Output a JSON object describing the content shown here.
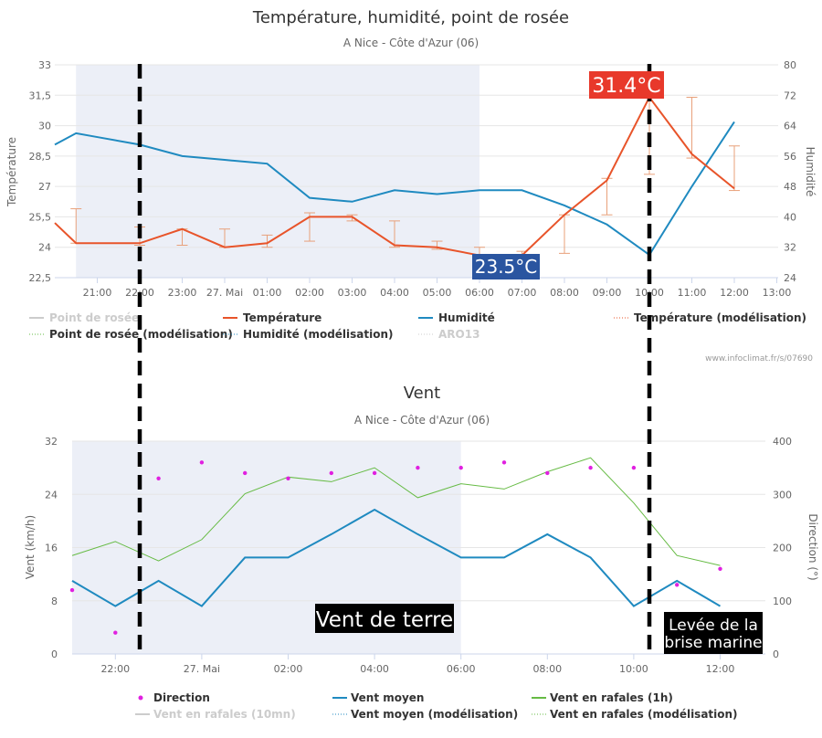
{
  "chart_data": [
    {
      "type": "line",
      "title": "Température, humidité, point de rosée",
      "subtitle": "A Nice - Côte d'Azur (06)",
      "ylabel": "Température",
      "y2label": "Humidité",
      "x_tick_labels": [
        "21:00",
        "22:00",
        "23:00",
        "27. Mai",
        "01:00",
        "02:00",
        "03:00",
        "04:00",
        "05:00",
        "06:00",
        "07:00",
        "08:00",
        "09:00",
        "10:00",
        "11:00",
        "12:00",
        "13:00"
      ],
      "y_tick_labels": [
        "22,5",
        "24",
        "25,5",
        "27",
        "28,5",
        "30",
        "31,5",
        "33"
      ],
      "y2_tick_labels": [
        "24",
        "32",
        "40",
        "48",
        "56",
        "64",
        "72",
        "80"
      ],
      "ylim": [
        22.5,
        33
      ],
      "y2lim": [
        24,
        80
      ],
      "grid": true,
      "night_band_hours": [
        20.5,
        30.0
      ],
      "series": [
        {
          "name": "Température",
          "color": "#e8542a",
          "x": [
            20.0,
            20.5,
            21.0,
            22.0,
            23.0,
            24.0,
            25.0,
            26.0,
            27.0,
            28.0,
            29.0,
            30.0,
            31.0,
            32.0,
            33.0,
            34.0,
            35.0,
            36.0
          ],
          "values": [
            25.2,
            24.2,
            24.2,
            24.2,
            24.9,
            24.0,
            24.2,
            25.5,
            25.5,
            24.1,
            24.0,
            23.6,
            23.6,
            25.6,
            27.3,
            31.4,
            28.6,
            26.9
          ]
        },
        {
          "name": "Humidité",
          "color": "#1f8ac0",
          "axis": "right",
          "x": [
            20.0,
            20.5,
            21.0,
            22.0,
            23.0,
            24.0,
            25.0,
            26.0,
            27.0,
            28.0,
            29.0,
            30.0,
            31.0,
            32.0,
            33.0,
            34.0,
            35.0,
            36.0
          ],
          "values": [
            59,
            62,
            61,
            59,
            56,
            55,
            54,
            45,
            44,
            47,
            46,
            47,
            47,
            43,
            38,
            30,
            48,
            65
          ]
        },
        {
          "name": "Température (modélisation)",
          "color": "#e8a07a",
          "errorbars": [
            {
              "x": 20.5,
              "low": 24.2,
              "high": 25.9
            },
            {
              "x": 22.0,
              "low": 24.1,
              "high": 25.0
            },
            {
              "x": 23.0,
              "low": 24.1,
              "high": 24.9
            },
            {
              "x": 24.0,
              "low": 24.0,
              "high": 24.9
            },
            {
              "x": 25.0,
              "low": 24.0,
              "high": 24.6
            },
            {
              "x": 26.0,
              "low": 24.3,
              "high": 25.7
            },
            {
              "x": 27.0,
              "low": 25.3,
              "high": 25.6
            },
            {
              "x": 28.0,
              "low": 24.0,
              "high": 25.3
            },
            {
              "x": 29.0,
              "low": 23.9,
              "high": 24.3
            },
            {
              "x": 30.0,
              "low": 23.6,
              "high": 24.0
            },
            {
              "x": 31.0,
              "low": 23.6,
              "high": 23.8
            },
            {
              "x": 32.0,
              "low": 23.7,
              "high": 25.6
            },
            {
              "x": 33.0,
              "low": 25.6,
              "high": 27.4
            },
            {
              "x": 34.0,
              "low": 27.6,
              "high": 31.6
            },
            {
              "x": 35.0,
              "low": 28.4,
              "high": 31.4
            },
            {
              "x": 36.0,
              "low": 26.8,
              "high": 29.0
            }
          ]
        }
      ],
      "legend": {
        "placement": "bottom",
        "items": [
          {
            "label": "Point de rosée",
            "color": "#cccccc",
            "style": "line-dim"
          },
          {
            "label": "Température",
            "color": "#e8542a",
            "style": "line"
          },
          {
            "label": "Humidité",
            "color": "#1f8ac0",
            "style": "line"
          },
          {
            "label": "Température (modélisation)",
            "color": "#e8542a",
            "style": "dotted"
          },
          {
            "label": "Point de rosée (modélisation)",
            "color": "#66bb44",
            "style": "dotted"
          },
          {
            "label": "Humidité (modélisation)",
            "color": "#1f8ac0",
            "style": "dotted"
          },
          {
            "label": "ARO13",
            "color": "#cccccc",
            "style": "dotted-dim"
          }
        ]
      },
      "annotations": [
        {
          "text": "31.4°C",
          "x": 34.0,
          "bg": "#e8392b"
        },
        {
          "text": "23.5°C",
          "x": 31.0,
          "bg": "#2a55a0"
        }
      ],
      "credit": "www.infoclimat.fr/s/07690"
    },
    {
      "type": "line",
      "title": "Vent",
      "subtitle": "A Nice - Côte d'Azur (06)",
      "ylabel": "Vent (km/h)",
      "y2label": "Direction (°)",
      "x_tick_labels": [
        "22:00",
        "27. Mai",
        "02:00",
        "04:00",
        "06:00",
        "08:00",
        "10:00",
        "12:00"
      ],
      "y_tick_labels": [
        "0",
        "8",
        "16",
        "24",
        "32"
      ],
      "y2_tick_labels": [
        "0",
        "100",
        "200",
        "300",
        "400"
      ],
      "ylim": [
        0,
        32
      ],
      "y2lim": [
        0,
        400
      ],
      "grid": true,
      "night_band_hours": [
        21.0,
        30.0
      ],
      "series": [
        {
          "name": "Vent moyen",
          "color": "#1f8ac0",
          "x": [
            21,
            22,
            23,
            24,
            25,
            26,
            27,
            28,
            29,
            30,
            31,
            32,
            33,
            34,
            35,
            36
          ],
          "values": [
            11,
            7.2,
            11,
            7.2,
            14.5,
            14.5,
            18,
            21.7,
            18,
            14.5,
            14.5,
            18,
            14.5,
            7.2,
            11,
            7.2
          ]
        },
        {
          "name": "Vent en rafales (1h)",
          "color": "#66bb44",
          "x": [
            21,
            22,
            23,
            24,
            25,
            26,
            27,
            28,
            29,
            30,
            31,
            32,
            33,
            34,
            35,
            36
          ],
          "values": [
            14.8,
            16.9,
            14,
            17.2,
            24.1,
            26.6,
            25.9,
            28,
            23.5,
            25.6,
            24.8,
            27.4,
            29.5,
            22.7,
            14.8,
            13.3
          ]
        },
        {
          "name": "Direction",
          "color": "#e020e0",
          "axis": "right",
          "style": "points",
          "x": [
            21,
            22,
            23,
            24,
            25,
            26,
            27,
            28,
            29,
            30,
            31,
            32,
            33,
            34,
            35,
            36
          ],
          "values": [
            120,
            40,
            330,
            360,
            340,
            330,
            340,
            340,
            350,
            350,
            360,
            340,
            350,
            350,
            130,
            160
          ]
        }
      ],
      "legend": {
        "placement": "bottom",
        "items": [
          {
            "label": "Direction",
            "color": "#e020e0",
            "style": "dot"
          },
          {
            "label": "Vent moyen",
            "color": "#1f8ac0",
            "style": "line"
          },
          {
            "label": "Vent en rafales (1h)",
            "color": "#66bb44",
            "style": "line"
          },
          {
            "label": "Vent en rafales (10mn)",
            "color": "#cccccc",
            "style": "line-dim"
          },
          {
            "label": "Vent moyen (modélisation)",
            "color": "#1f8ac0",
            "style": "dotted"
          },
          {
            "label": "Vent en rafales (modélisation)",
            "color": "#66bb44",
            "style": "dotted"
          }
        ]
      },
      "annotations": [
        {
          "text": "Vent de terre"
        },
        {
          "text": "Levée de la\nbrise marine"
        }
      ]
    }
  ],
  "overlay_lines": [
    {
      "name": "dashed-line-22h",
      "hour": 22.0
    },
    {
      "name": "dashed-line-10h",
      "hour": 34.0
    }
  ]
}
